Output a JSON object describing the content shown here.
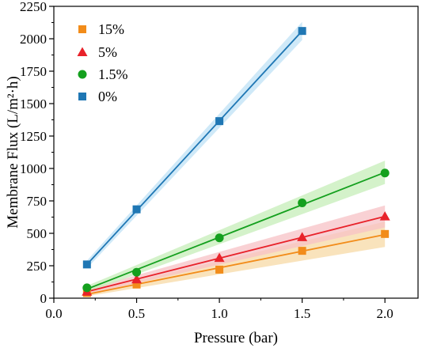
{
  "chart_data": {
    "type": "scatter",
    "title": "",
    "xlabel": "Pressure (bar)",
    "ylabel": "Membrane Flux (L/m²·h)",
    "xlim": [
      0.0,
      2.2
    ],
    "ylim": [
      0,
      2250
    ],
    "xticks": [
      0.0,
      0.5,
      1.0,
      1.5,
      2.0
    ],
    "xtick_labels": [
      "0.0",
      "0.5",
      "1.0",
      "1.5",
      "2.0"
    ],
    "yticks": [
      0,
      250,
      500,
      750,
      1000,
      1250,
      1500,
      1750,
      2000,
      2250
    ],
    "ytick_labels": [
      "0",
      "250",
      "500",
      "750",
      "1000",
      "1250",
      "1500",
      "1750",
      "2000",
      "2250"
    ],
    "grid": false,
    "legend_position": "top-left",
    "series": [
      {
        "name": "15%",
        "marker": "square",
        "color": "#F28C1A",
        "band_color": "#F7D9A6",
        "x": [
          0.2,
          0.5,
          1.0,
          1.5,
          2.0
        ],
        "y": [
          40,
          105,
          220,
          365,
          495
        ],
        "fit": [
          [
            0.2,
            30
          ],
          [
            2.0,
            490
          ]
        ],
        "band_upper": [
          [
            0.2,
            45
          ],
          [
            2.0,
            590
          ]
        ],
        "band_lower": [
          [
            0.2,
            15
          ],
          [
            2.0,
            395
          ]
        ]
      },
      {
        "name": "5%",
        "marker": "triangle",
        "color": "#E8222A",
        "band_color": "#F7C2C6",
        "x": [
          0.2,
          0.5,
          1.0,
          1.5,
          2.0
        ],
        "y": [
          50,
          145,
          310,
          470,
          630
        ],
        "fit": [
          [
            0.2,
            50
          ],
          [
            2.0,
            630
          ]
        ],
        "band_upper": [
          [
            0.2,
            70
          ],
          [
            2.0,
            715
          ]
        ],
        "band_lower": [
          [
            0.2,
            30
          ],
          [
            2.0,
            545
          ]
        ]
      },
      {
        "name": "1.5%",
        "marker": "circle",
        "color": "#14A01E",
        "band_color": "#C6EDB8",
        "x": [
          0.2,
          0.5,
          1.0,
          1.5,
          2.0
        ],
        "y": [
          80,
          200,
          465,
          735,
          965
        ],
        "fit": [
          [
            0.2,
            70
          ],
          [
            2.0,
            970
          ]
        ],
        "band_upper": [
          [
            0.2,
            95
          ],
          [
            2.0,
            1060
          ]
        ],
        "band_lower": [
          [
            0.2,
            45
          ],
          [
            2.0,
            880
          ]
        ]
      },
      {
        "name": "0%",
        "marker": "square",
        "color": "#1F77B4",
        "band_color": "#BFE2F5",
        "x": [
          0.2,
          0.5,
          1.0,
          1.5
        ],
        "y": [
          260,
          685,
          1365,
          2060
        ],
        "fit": [
          [
            0.2,
            260
          ],
          [
            1.5,
            2060
          ]
        ],
        "band_upper": [
          [
            0.2,
            290
          ],
          [
            1.5,
            2130
          ]
        ],
        "band_lower": [
          [
            0.2,
            230
          ],
          [
            1.5,
            1990
          ]
        ]
      }
    ]
  }
}
